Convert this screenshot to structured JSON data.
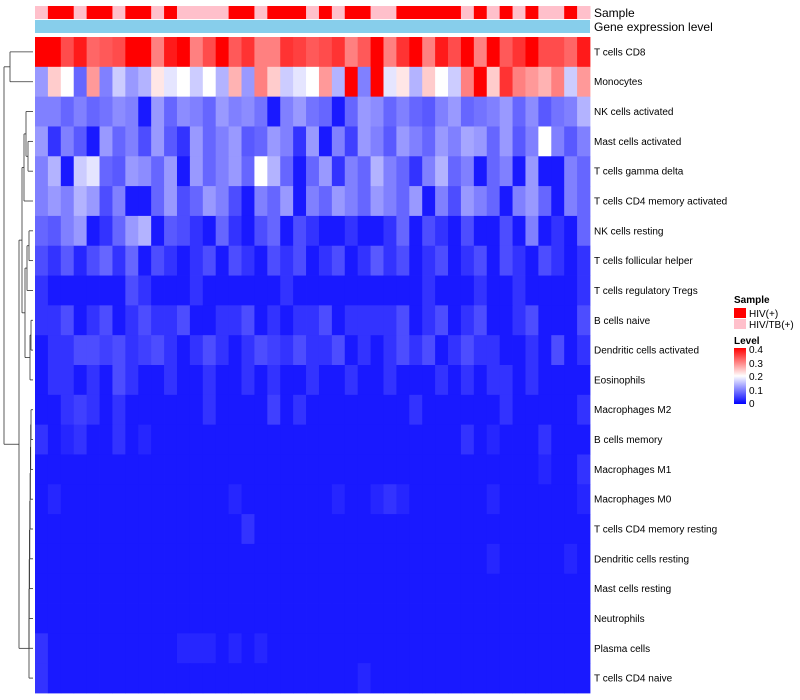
{
  "chart_data": {
    "type": "heatmap",
    "n_samples": 43,
    "annotation_labels": [
      "Sample",
      "Gene expression level"
    ],
    "sample_groups": [
      "HIV/TB(+)",
      "HIV(+)",
      "HIV(+)",
      "HIV/TB(+)",
      "HIV(+)",
      "HIV(+)",
      "HIV/TB(+)",
      "HIV(+)",
      "HIV(+)",
      "HIV/TB(+)",
      "HIV(+)",
      "HIV/TB(+)",
      "HIV/TB(+)",
      "HIV/TB(+)",
      "HIV/TB(+)",
      "HIV(+)",
      "HIV(+)",
      "HIV/TB(+)",
      "HIV(+)",
      "HIV(+)",
      "HIV(+)",
      "HIV/TB(+)",
      "HIV(+)",
      "HIV/TB(+)",
      "HIV(+)",
      "HIV(+)",
      "HIV/TB(+)",
      "HIV/TB(+)",
      "HIV(+)",
      "HIV(+)",
      "HIV(+)",
      "HIV(+)",
      "HIV(+)",
      "HIV/TB(+)",
      "HIV(+)",
      "HIV/TB(+)",
      "HIV(+)",
      "HIV/TB(+)",
      "HIV(+)",
      "HIV/TB(+)",
      "HIV/TB(+)",
      "HIV(+)",
      "HIV/TB(+)"
    ],
    "rows": [
      {
        "label": "T cells CD8",
        "values": [
          0.4,
          0.4,
          0.34,
          0.38,
          0.32,
          0.33,
          0.34,
          0.42,
          0.42,
          0.3,
          0.38,
          0.42,
          0.3,
          0.34,
          0.4,
          0.33,
          0.36,
          0.3,
          0.3,
          0.36,
          0.35,
          0.33,
          0.34,
          0.36,
          0.3,
          0.33,
          0.42,
          0.3,
          0.36,
          0.4,
          0.3,
          0.38,
          0.34,
          0.42,
          0.3,
          0.4,
          0.33,
          0.36,
          0.4,
          0.34,
          0.34,
          0.32,
          0.38
        ]
      },
      {
        "label": "Monocytes",
        "values": [
          0.12,
          0.24,
          0.2,
          0.08,
          0.28,
          0.1,
          0.16,
          0.12,
          0.14,
          0.22,
          0.18,
          0.2,
          0.16,
          0.2,
          0.14,
          0.26,
          0.12,
          0.3,
          0.24,
          0.16,
          0.18,
          0.2,
          0.28,
          0.14,
          0.42,
          0.1,
          0.4,
          0.18,
          0.22,
          0.14,
          0.24,
          0.2,
          0.16,
          0.3,
          0.42,
          0.24,
          0.36,
          0.3,
          0.28,
          0.26,
          0.3,
          0.16,
          0.28
        ]
      },
      {
        "label": "NK cells activated",
        "values": [
          0.1,
          0.1,
          0.08,
          0.1,
          0.08,
          0.09,
          0.11,
          0.1,
          0.02,
          0.12,
          0.08,
          0.11,
          0.1,
          0.08,
          0.12,
          0.1,
          0.11,
          0.09,
          0.02,
          0.1,
          0.12,
          0.09,
          0.08,
          0.02,
          0.08,
          0.12,
          0.11,
          0.08,
          0.1,
          0.08,
          0.07,
          0.1,
          0.12,
          0.08,
          0.09,
          0.1,
          0.12,
          0.08,
          0.11,
          0.07,
          0.09,
          0.1,
          0.14
        ]
      },
      {
        "label": "Mast cells activated",
        "values": [
          0.12,
          0.04,
          0.1,
          0.07,
          0.02,
          0.12,
          0.08,
          0.1,
          0.06,
          0.12,
          0.07,
          0.04,
          0.12,
          0.08,
          0.1,
          0.12,
          0.07,
          0.08,
          0.12,
          0.1,
          0.04,
          0.12,
          0.02,
          0.1,
          0.05,
          0.12,
          0.1,
          0.07,
          0.12,
          0.1,
          0.08,
          0.12,
          0.1,
          0.13,
          0.12,
          0.08,
          0.12,
          0.07,
          0.1,
          0.2,
          0.1,
          0.07,
          0.1
        ]
      },
      {
        "label": "T cells gamma delta",
        "values": [
          0.1,
          0.14,
          0.02,
          0.16,
          0.18,
          0.08,
          0.07,
          0.12,
          0.11,
          0.08,
          0.12,
          0.02,
          0.12,
          0.08,
          0.1,
          0.12,
          0.08,
          0.2,
          0.14,
          0.08,
          0.02,
          0.08,
          0.12,
          0.04,
          0.1,
          0.08,
          0.14,
          0.1,
          0.08,
          0.04,
          0.1,
          0.14,
          0.08,
          0.1,
          0.02,
          0.08,
          0.1,
          0.02,
          0.12,
          0.02,
          0.02,
          0.1,
          0.08
        ]
      },
      {
        "label": "T cells CD4 memory activated",
        "values": [
          0.1,
          0.12,
          0.1,
          0.14,
          0.12,
          0.06,
          0.1,
          0.02,
          0.02,
          0.08,
          0.12,
          0.06,
          0.08,
          0.12,
          0.1,
          0.06,
          0.02,
          0.1,
          0.08,
          0.12,
          0.02,
          0.1,
          0.08,
          0.12,
          0.1,
          0.08,
          0.12,
          0.1,
          0.08,
          0.12,
          0.02,
          0.1,
          0.06,
          0.12,
          0.1,
          0.08,
          0.02,
          0.1,
          0.12,
          0.08,
          0.02,
          0.1,
          0.08
        ]
      },
      {
        "label": "NK cells resting",
        "values": [
          0.08,
          0.07,
          0.1,
          0.12,
          0.02,
          0.04,
          0.08,
          0.12,
          0.14,
          0.02,
          0.07,
          0.06,
          0.04,
          0.02,
          0.08,
          0.04,
          0.02,
          0.06,
          0.08,
          0.02,
          0.06,
          0.04,
          0.02,
          0.02,
          0.04,
          0.02,
          0.02,
          0.04,
          0.08,
          0.02,
          0.06,
          0.04,
          0.02,
          0.06,
          0.02,
          0.02,
          0.06,
          0.02,
          0.1,
          0.02,
          0.04,
          0.02,
          0.08
        ]
      },
      {
        "label": "T cells follicular helper",
        "values": [
          0.06,
          0.04,
          0.07,
          0.03,
          0.06,
          0.08,
          0.04,
          0.08,
          0.02,
          0.06,
          0.04,
          0.02,
          0.04,
          0.06,
          0.02,
          0.06,
          0.04,
          0.02,
          0.06,
          0.04,
          0.06,
          0.02,
          0.04,
          0.06,
          0.02,
          0.04,
          0.07,
          0.04,
          0.06,
          0.02,
          0.04,
          0.06,
          0.02,
          0.04,
          0.06,
          0.02,
          0.06,
          0.04,
          0.02,
          0.06,
          0.04,
          0.02,
          0.04
        ]
      },
      {
        "label": "T cells regulatory  Tregs",
        "values": [
          0.04,
          0.02,
          0.02,
          0.02,
          0.02,
          0.02,
          0.02,
          0.06,
          0.04,
          0.02,
          0.02,
          0.02,
          0.04,
          0.02,
          0.02,
          0.02,
          0.02,
          0.02,
          0.02,
          0.04,
          0.02,
          0.02,
          0.02,
          0.02,
          0.02,
          0.02,
          0.02,
          0.02,
          0.02,
          0.02,
          0.04,
          0.02,
          0.02,
          0.02,
          0.04,
          0.02,
          0.02,
          0.04,
          0.02,
          0.02,
          0.02,
          0.02,
          0.04
        ]
      },
      {
        "label": "B cells naive",
        "values": [
          0.04,
          0.04,
          0.06,
          0.02,
          0.04,
          0.06,
          0.02,
          0.04,
          0.06,
          0.04,
          0.04,
          0.06,
          0.02,
          0.02,
          0.04,
          0.04,
          0.06,
          0.02,
          0.04,
          0.02,
          0.04,
          0.04,
          0.06,
          0.02,
          0.04,
          0.04,
          0.04,
          0.04,
          0.06,
          0.02,
          0.04,
          0.06,
          0.02,
          0.04,
          0.06,
          0.02,
          0.02,
          0.04,
          0.06,
          0.02,
          0.02,
          0.02,
          0.06
        ]
      },
      {
        "label": "Dendritic cells activated",
        "values": [
          0.02,
          0.04,
          0.04,
          0.06,
          0.06,
          0.05,
          0.06,
          0.04,
          0.05,
          0.06,
          0.04,
          0.02,
          0.04,
          0.06,
          0.04,
          0.02,
          0.04,
          0.06,
          0.05,
          0.04,
          0.06,
          0.04,
          0.04,
          0.06,
          0.02,
          0.04,
          0.02,
          0.04,
          0.06,
          0.04,
          0.06,
          0.02,
          0.04,
          0.06,
          0.04,
          0.04,
          0.02,
          0.02,
          0.04,
          0.02,
          0.06,
          0.02,
          0.04
        ]
      },
      {
        "label": "Eosinophils",
        "values": [
          0.02,
          0.04,
          0.04,
          0.02,
          0.04,
          0.02,
          0.06,
          0.04,
          0.02,
          0.02,
          0.04,
          0.02,
          0.02,
          0.04,
          0.02,
          0.02,
          0.04,
          0.02,
          0.04,
          0.02,
          0.02,
          0.04,
          0.02,
          0.02,
          0.04,
          0.02,
          0.02,
          0.04,
          0.02,
          0.02,
          0.02,
          0.04,
          0.02,
          0.04,
          0.02,
          0.04,
          0.04,
          0.02,
          0.04,
          0.02,
          0.02,
          0.02,
          0.02
        ]
      },
      {
        "label": "Macrophages M2",
        "values": [
          0.02,
          0.02,
          0.04,
          0.05,
          0.04,
          0.02,
          0.04,
          0.02,
          0.02,
          0.02,
          0.02,
          0.02,
          0.02,
          0.04,
          0.02,
          0.02,
          0.02,
          0.02,
          0.05,
          0.02,
          0.04,
          0.02,
          0.02,
          0.02,
          0.02,
          0.02,
          0.02,
          0.02,
          0.02,
          0.04,
          0.02,
          0.02,
          0.02,
          0.02,
          0.02,
          0.02,
          0.04,
          0.02,
          0.02,
          0.02,
          0.02,
          0.02,
          0.04
        ]
      },
      {
        "label": "B cells memory",
        "values": [
          0.04,
          0.02,
          0.03,
          0.04,
          0.02,
          0.02,
          0.04,
          0.02,
          0.03,
          0.02,
          0.02,
          0.02,
          0.02,
          0.02,
          0.02,
          0.02,
          0.02,
          0.02,
          0.02,
          0.02,
          0.02,
          0.02,
          0.02,
          0.02,
          0.02,
          0.02,
          0.02,
          0.02,
          0.02,
          0.02,
          0.02,
          0.02,
          0.02,
          0.04,
          0.02,
          0.03,
          0.02,
          0.02,
          0.02,
          0.04,
          0.02,
          0.02,
          0.02
        ]
      },
      {
        "label": "Macrophages M1",
        "values": [
          0.02,
          0.02,
          0.02,
          0.02,
          0.02,
          0.02,
          0.02,
          0.02,
          0.02,
          0.02,
          0.02,
          0.02,
          0.02,
          0.02,
          0.02,
          0.02,
          0.02,
          0.02,
          0.02,
          0.02,
          0.02,
          0.02,
          0.02,
          0.02,
          0.02,
          0.02,
          0.02,
          0.02,
          0.02,
          0.02,
          0.02,
          0.02,
          0.02,
          0.02,
          0.02,
          0.02,
          0.02,
          0.02,
          0.02,
          0.03,
          0.02,
          0.02,
          0.04
        ]
      },
      {
        "label": "Macrophages M0",
        "values": [
          0.02,
          0.03,
          0.02,
          0.02,
          0.02,
          0.02,
          0.02,
          0.02,
          0.02,
          0.02,
          0.02,
          0.02,
          0.02,
          0.02,
          0.02,
          0.03,
          0.02,
          0.02,
          0.02,
          0.02,
          0.02,
          0.02,
          0.02,
          0.03,
          0.02,
          0.02,
          0.03,
          0.04,
          0.03,
          0.02,
          0.02,
          0.02,
          0.02,
          0.02,
          0.02,
          0.03,
          0.02,
          0.02,
          0.02,
          0.02,
          0.02,
          0.02,
          0.03
        ]
      },
      {
        "label": "T cells CD4 memory resting",
        "values": [
          0.02,
          0.02,
          0.02,
          0.02,
          0.02,
          0.02,
          0.02,
          0.02,
          0.02,
          0.02,
          0.02,
          0.02,
          0.02,
          0.02,
          0.02,
          0.02,
          0.04,
          0.02,
          0.02,
          0.02,
          0.02,
          0.02,
          0.02,
          0.02,
          0.02,
          0.02,
          0.02,
          0.02,
          0.02,
          0.02,
          0.02,
          0.02,
          0.02,
          0.02,
          0.02,
          0.02,
          0.02,
          0.02,
          0.02,
          0.02,
          0.02,
          0.02,
          0.02
        ]
      },
      {
        "label": "Dendritic cells resting",
        "values": [
          0.02,
          0.02,
          0.02,
          0.02,
          0.02,
          0.02,
          0.02,
          0.02,
          0.02,
          0.02,
          0.02,
          0.02,
          0.02,
          0.02,
          0.02,
          0.02,
          0.02,
          0.02,
          0.02,
          0.02,
          0.02,
          0.02,
          0.02,
          0.02,
          0.02,
          0.02,
          0.02,
          0.02,
          0.02,
          0.02,
          0.02,
          0.02,
          0.02,
          0.02,
          0.02,
          0.03,
          0.02,
          0.02,
          0.02,
          0.02,
          0.02,
          0.03,
          0.02
        ]
      },
      {
        "label": "Mast cells resting",
        "values": [
          0.02,
          0.02,
          0.02,
          0.02,
          0.02,
          0.02,
          0.02,
          0.02,
          0.02,
          0.02,
          0.02,
          0.02,
          0.02,
          0.02,
          0.02,
          0.02,
          0.02,
          0.02,
          0.02,
          0.02,
          0.02,
          0.02,
          0.02,
          0.02,
          0.02,
          0.02,
          0.02,
          0.02,
          0.02,
          0.02,
          0.02,
          0.02,
          0.02,
          0.02,
          0.02,
          0.02,
          0.02,
          0.02,
          0.02,
          0.02,
          0.02,
          0.02,
          0.02
        ]
      },
      {
        "label": "Neutrophils",
        "values": [
          0.02,
          0.02,
          0.02,
          0.02,
          0.02,
          0.02,
          0.02,
          0.02,
          0.02,
          0.02,
          0.02,
          0.02,
          0.02,
          0.02,
          0.02,
          0.02,
          0.02,
          0.02,
          0.02,
          0.02,
          0.02,
          0.02,
          0.02,
          0.02,
          0.02,
          0.02,
          0.02,
          0.02,
          0.02,
          0.02,
          0.02,
          0.02,
          0.02,
          0.02,
          0.02,
          0.02,
          0.02,
          0.02,
          0.02,
          0.02,
          0.02,
          0.02,
          0.02
        ]
      },
      {
        "label": "Plasma cells",
        "values": [
          0.04,
          0.02,
          0.02,
          0.02,
          0.02,
          0.02,
          0.02,
          0.02,
          0.02,
          0.02,
          0.02,
          0.03,
          0.03,
          0.03,
          0.02,
          0.03,
          0.02,
          0.03,
          0.02,
          0.02,
          0.02,
          0.02,
          0.02,
          0.02,
          0.02,
          0.02,
          0.02,
          0.02,
          0.02,
          0.02,
          0.02,
          0.02,
          0.02,
          0.02,
          0.02,
          0.02,
          0.02,
          0.02,
          0.02,
          0.02,
          0.02,
          0.02,
          0.02
        ]
      },
      {
        "label": "T cells CD4 naive",
        "values": [
          0.04,
          0.02,
          0.02,
          0.02,
          0.02,
          0.02,
          0.02,
          0.02,
          0.02,
          0.02,
          0.02,
          0.02,
          0.02,
          0.02,
          0.02,
          0.02,
          0.02,
          0.02,
          0.02,
          0.02,
          0.02,
          0.02,
          0.02,
          0.02,
          0.02,
          0.03,
          0.02,
          0.02,
          0.02,
          0.02,
          0.02,
          0.02,
          0.02,
          0.02,
          0.02,
          0.02,
          0.02,
          0.02,
          0.02,
          0.02,
          0.02,
          0.02,
          0.02
        ]
      }
    ],
    "color_scale": {
      "min": 0,
      "mid": 0.2,
      "max": 0.4,
      "low": "#0000FF",
      "midcolor": "#FFFFFF",
      "high": "#FF0000"
    },
    "legend": {
      "sample_title": "Sample",
      "sample_items": [
        {
          "label": "HIV(+)",
          "color": "#FF0000"
        },
        {
          "label": "HIV/TB(+)",
          "color": "#FFC0CB"
        }
      ],
      "level_title": "Level",
      "level_ticks": [
        "0.4",
        "0.3",
        "0.2",
        "0.1",
        "0"
      ],
      "placement": "right"
    },
    "gene_expression_color": "#87CEEB"
  }
}
